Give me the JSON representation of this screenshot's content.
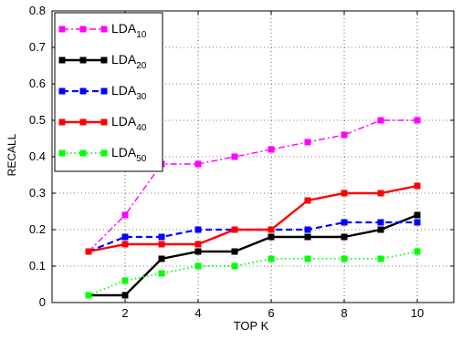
{
  "chart_data": {
    "type": "line",
    "xlabel": "TOP K",
    "ylabel": "RECALL",
    "xlim": [
      0,
      11
    ],
    "ylim": [
      0,
      0.8
    ],
    "xticks": [
      2,
      4,
      6,
      8,
      10
    ],
    "yticks": [
      0,
      0.1,
      0.2,
      0.3,
      0.4,
      0.5,
      0.6,
      0.7,
      0.8
    ],
    "grid": true,
    "legend_position": "top-left",
    "x": [
      1,
      2,
      3,
      4,
      5,
      6,
      7,
      8,
      9,
      10
    ],
    "series": [
      {
        "name": "LDA",
        "subscript": "10",
        "color": "#ff00ff",
        "dash": "dashdot",
        "values": [
          0.14,
          0.24,
          0.38,
          0.38,
          0.4,
          0.42,
          0.44,
          0.46,
          0.5,
          0.5
        ]
      },
      {
        "name": "LDA",
        "subscript": "20",
        "color": "#000000",
        "dash": "solid",
        "values": [
          0.02,
          0.02,
          0.12,
          0.14,
          0.14,
          0.18,
          0.18,
          0.18,
          0.2,
          0.24
        ]
      },
      {
        "name": "LDA",
        "subscript": "30",
        "color": "#0000ff",
        "dash": "dashed",
        "values": [
          0.14,
          0.18,
          0.18,
          0.2,
          0.2,
          0.2,
          0.2,
          0.22,
          0.22,
          0.22
        ]
      },
      {
        "name": "LDA",
        "subscript": "40",
        "color": "#ff0000",
        "dash": "solid",
        "values": [
          0.14,
          0.16,
          0.16,
          0.16,
          0.2,
          0.2,
          0.28,
          0.3,
          0.3,
          0.32
        ]
      },
      {
        "name": "LDA",
        "subscript": "50",
        "color": "#00ff00",
        "dash": "dotted",
        "values": [
          0.02,
          0.06,
          0.08,
          0.1,
          0.1,
          0.12,
          0.12,
          0.12,
          0.12,
          0.14
        ]
      }
    ]
  }
}
